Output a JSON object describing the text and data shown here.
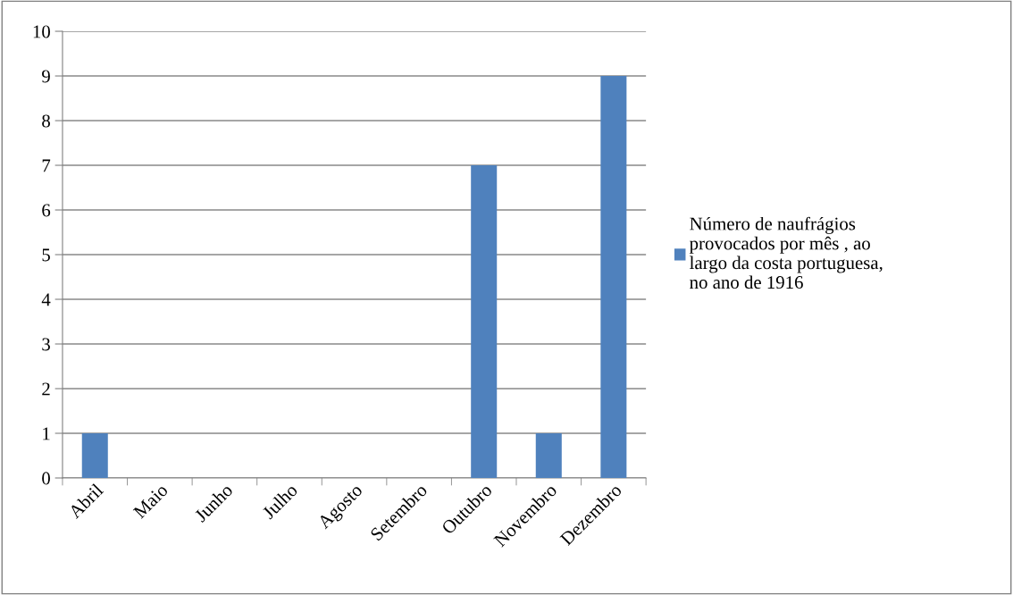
{
  "chart_data": {
    "type": "bar",
    "categories": [
      "Abril",
      "Maio",
      "Junho",
      "Julho",
      "Agosto",
      "Setembro",
      "Outubro",
      "Novembro",
      "Dezembro"
    ],
    "series": [
      {
        "name": "Número de naufrágios provocados por mês , ao largo da costa portuguesa, no ano de 1916",
        "color": "#4f81bd",
        "values": [
          1,
          0,
          0,
          0,
          0,
          0,
          7,
          1,
          9
        ]
      }
    ],
    "ylim": [
      0,
      10
    ],
    "yticks": [
      0,
      1,
      2,
      3,
      4,
      5,
      6,
      7,
      8,
      9,
      10
    ],
    "grid": "y",
    "legend": "right"
  }
}
